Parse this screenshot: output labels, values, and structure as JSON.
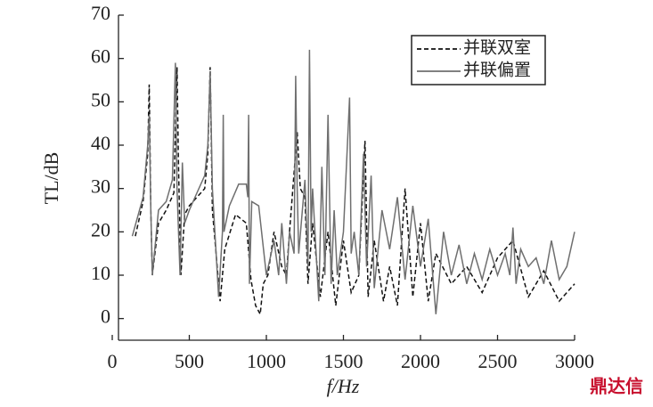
{
  "chart_data": {
    "type": "line",
    "x_label": "f/Hz",
    "y_label": "TL/dB",
    "watermark": "鼎达信",
    "xlim": [
      0,
      3000
    ],
    "xticks": [
      0,
      500,
      1000,
      1500,
      2000,
      2500,
      3000
    ],
    "ylim": [
      -5,
      70
    ],
    "yticks": [
      0,
      10,
      20,
      30,
      40,
      50,
      60,
      70
    ],
    "legend": "top-right",
    "series": [
      {
        "name": "并联双室",
        "color": "#111111",
        "dash": true,
        "x": [
          150,
          200,
          230,
          240,
          250,
          260,
          300,
          350,
          400,
          420,
          430,
          445,
          470,
          500,
          550,
          600,
          620,
          635,
          650,
          700,
          730,
          800,
          870,
          900,
          930,
          960,
          980,
          1010,
          1050,
          1100,
          1130,
          1150,
          1200,
          1220,
          1250,
          1270,
          1300,
          1350,
          1400,
          1450,
          1500,
          1550,
          1600,
          1640,
          1660,
          1700,
          1760,
          1800,
          1850,
          1900,
          1950,
          2000,
          2050,
          2100,
          2200,
          2300,
          2400,
          2500,
          2600,
          2700,
          2800,
          2900,
          3000
        ],
        "values": [
          19,
          27,
          38,
          54,
          25,
          10,
          22,
          25,
          29,
          58,
          35,
          10,
          24,
          26,
          28,
          30,
          38,
          58,
          25,
          4,
          16,
          24,
          22,
          9,
          3,
          1,
          8,
          10,
          20,
          12,
          10,
          20,
          43,
          30,
          28,
          8,
          22,
          5,
          20,
          3,
          18,
          6,
          10,
          41,
          5,
          18,
          4,
          12,
          3,
          30,
          5,
          22,
          4,
          15,
          8,
          12,
          6,
          14,
          18,
          5,
          11,
          4,
          8
        ]
      },
      {
        "name": "并联偏置",
        "color": "#6f6f6f",
        "dash": false,
        "x": [
          130,
          200,
          230,
          240,
          250,
          260,
          300,
          350,
          390,
          410,
          420,
          440,
          455,
          470,
          500,
          550,
          600,
          620,
          635,
          650,
          690,
          715,
          720,
          725,
          760,
          820,
          870,
          880,
          885,
          890,
          905,
          950,
          1000,
          1050,
          1080,
          1100,
          1130,
          1150,
          1180,
          1190,
          1200,
          1210,
          1250,
          1270,
          1280,
          1290,
          1300,
          1340,
          1360,
          1380,
          1400,
          1420,
          1440,
          1460,
          1500,
          1540,
          1550,
          1570,
          1600,
          1630,
          1650,
          1680,
          1700,
          1750,
          1800,
          1850,
          1900,
          1950,
          2000,
          2050,
          2100,
          2150,
          2200,
          2250,
          2300,
          2350,
          2400,
          2450,
          2500,
          2550,
          2580,
          2600,
          2620,
          2650,
          2700,
          2750,
          2800,
          2850,
          2900,
          2950,
          3000
        ],
        "values": [
          19,
          28,
          40,
          47,
          25,
          10,
          25,
          27,
          32,
          59,
          30,
          10,
          36,
          22,
          25,
          29,
          33,
          40,
          57,
          30,
          5,
          20,
          47,
          20,
          26,
          31,
          31,
          28,
          47,
          8,
          27,
          26,
          10,
          18,
          10,
          22,
          8,
          20,
          15,
          56,
          30,
          15,
          32,
          12,
          62,
          20,
          30,
          4,
          35,
          10,
          47,
          8,
          25,
          10,
          20,
          51,
          15,
          20,
          10,
          38,
          12,
          33,
          7,
          25,
          16,
          28,
          9,
          26,
          12,
          23,
          1,
          20,
          10,
          17,
          8,
          15,
          9,
          16,
          10,
          15,
          10,
          21,
          8,
          16,
          12,
          14,
          8,
          18,
          9,
          12,
          20
        ]
      }
    ]
  }
}
